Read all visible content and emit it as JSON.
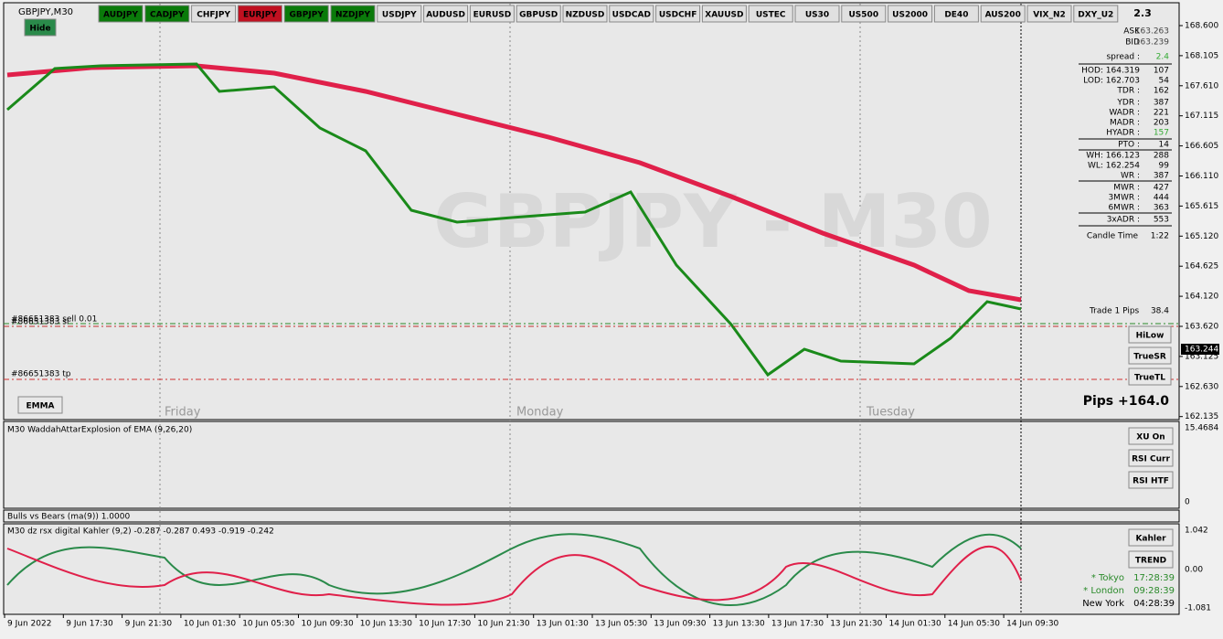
{
  "header": {
    "symbol": "GBPJPY,M30",
    "buttons": [
      {
        "label": "AUDJPY",
        "state": "green"
      },
      {
        "label": "CADJPY",
        "state": "green"
      },
      {
        "label": "CHFJPY",
        "state": "gray"
      },
      {
        "label": "EURJPY",
        "state": "red"
      },
      {
        "label": "GBPJPY",
        "state": "green"
      },
      {
        "label": "NZDJPY",
        "state": "green"
      },
      {
        "label": "USDJPY",
        "state": "gray"
      },
      {
        "label": "AUDUSD",
        "state": "gray"
      },
      {
        "label": "EURUSD",
        "state": "gray"
      },
      {
        "label": "GBPUSD",
        "state": "gray"
      },
      {
        "label": "NZDUSD",
        "state": "gray"
      },
      {
        "label": "USDCAD",
        "state": "gray"
      },
      {
        "label": "USDCHF",
        "state": "gray"
      },
      {
        "label": "XAUUSD",
        "state": "gray"
      },
      {
        "label": "USTEC",
        "state": "gray"
      },
      {
        "label": "US30",
        "state": "gray"
      },
      {
        "label": "US500",
        "state": "gray"
      },
      {
        "label": "US2000",
        "state": "gray"
      },
      {
        "label": "DE40",
        "state": "gray"
      },
      {
        "label": "AUS200",
        "state": "gray"
      },
      {
        "label": "VIX_N2",
        "state": "gray"
      },
      {
        "label": "DXY_U2",
        "state": "gray"
      }
    ],
    "version": "2.3"
  },
  "main": {
    "watermark": "GBPJPY - M30",
    "hide": "Hide",
    "emma": "EMMA",
    "days": [
      "Friday",
      "Monday",
      "Tuesday"
    ],
    "orders": [
      "#86651383 sell 0.01",
      "#86651383 sl",
      "#86651383 tp"
    ],
    "trade_pips": {
      "label": "Trade 1 Pips",
      "value": "38.4"
    },
    "side_buttons": [
      "HiLow",
      "TrueSR",
      "TrueTL"
    ],
    "pips_total": "Pips +164.0",
    "price_scale": [
      "168.600",
      "168.105",
      "167.610",
      "167.115",
      "166.605",
      "166.110",
      "165.615",
      "165.120",
      "164.625",
      "164.120",
      "163.620",
      "163.125",
      "162.630",
      "162.135"
    ],
    "current_price": "163.244"
  },
  "info_panel": {
    "rows": [
      [
        "ASK",
        "163.263"
      ],
      [
        "BID",
        "163.239"
      ],
      [
        "spread :",
        "2.4"
      ],
      [
        "HOD: 164.319",
        "107"
      ],
      [
        "LOD: 162.703",
        "54"
      ],
      [
        "TDR :",
        "162"
      ],
      [
        "YDR :",
        "387"
      ],
      [
        "WADR :",
        "221"
      ],
      [
        "MADR :",
        "203"
      ],
      [
        "HYADR :",
        "157"
      ],
      [
        "PTO :",
        "14"
      ],
      [
        "WH: 166.123",
        "288"
      ],
      [
        "WL: 162.254",
        "99"
      ],
      [
        "WR :",
        "387"
      ],
      [
        "MWR :",
        "427"
      ],
      [
        "3MWR :",
        "444"
      ],
      [
        "6MWR :",
        "363"
      ],
      [
        "3xADR :",
        "553"
      ],
      [
        "Candle Time",
        "1:22"
      ]
    ]
  },
  "waddah": {
    "title": "M30 WaddahAttarExplosion of EMA (9,26,20)",
    "scale": [
      "15.4684",
      "0"
    ],
    "buttons": [
      "XU On",
      "RSI Curr",
      "RSI HTF"
    ]
  },
  "bulls_bears": {
    "title": "Bulls vs Bears (ma(9)) 1.0000"
  },
  "rsx": {
    "title": "M30  dz rsx digital Kahler (9,2) -0.287 -0.287 0.493 -0.919 -0.242",
    "scale": [
      "1.042",
      "0.00",
      "-1.081"
    ],
    "buttons": [
      "Kahler",
      "TREND"
    ],
    "clocks": [
      [
        "* Tokyo",
        "17:28:39"
      ],
      [
        "* London",
        "09:28:39"
      ],
      [
        "New York",
        "04:28:39"
      ]
    ]
  },
  "time_axis": [
    "9 Jun 2022",
    "9 Jun 17:30",
    "9 Jun 21:30",
    "10 Jun 01:30",
    "10 Jun 05:30",
    "10 Jun 09:30",
    "10 Jun 13:30",
    "10 Jun 17:30",
    "10 Jun 21:30",
    "13 Jun 01:30",
    "13 Jun 05:30",
    "13 Jun 09:30",
    "13 Jun 13:30",
    "13 Jun 17:30",
    "13 Jun 21:30",
    "14 Jun 01:30",
    "14 Jun 05:30",
    "14 Jun 09:30"
  ]
}
